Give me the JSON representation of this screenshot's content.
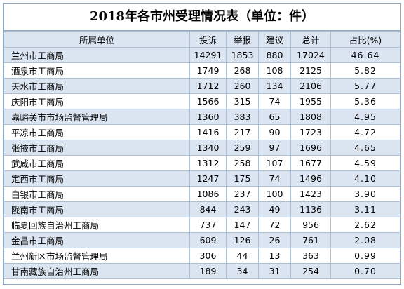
{
  "title": "2018年各市州受理情况表（单位：件）",
  "headers": {
    "unit": "所属单位",
    "complaint": "投诉",
    "report": "举报",
    "suggestion": "建议",
    "total": "总计",
    "share": "占比(%)"
  },
  "rows": [
    {
      "unit": "兰州市工商局",
      "complaint": "14291",
      "report": "1853",
      "suggestion": "880",
      "total": "17024",
      "share": "46.64"
    },
    {
      "unit": "酒泉市工商局",
      "complaint": "1749",
      "report": "268",
      "suggestion": "108",
      "total": "2125",
      "share": "5.82"
    },
    {
      "unit": "天水市工商局",
      "complaint": "1712",
      "report": "260",
      "suggestion": "134",
      "total": "2106",
      "share": "5.77"
    },
    {
      "unit": "庆阳市工商局",
      "complaint": "1566",
      "report": "315",
      "suggestion": "74",
      "total": "1955",
      "share": "5.36"
    },
    {
      "unit": "嘉峪关市市场监督管理局",
      "complaint": "1360",
      "report": "383",
      "suggestion": "65",
      "total": "1808",
      "share": "4.95"
    },
    {
      "unit": "平凉市工商局",
      "complaint": "1416",
      "report": "217",
      "suggestion": "90",
      "total": "1723",
      "share": "4.72"
    },
    {
      "unit": "张掖市工商局",
      "complaint": "1340",
      "report": "259",
      "suggestion": "97",
      "total": "1696",
      "share": "4.65"
    },
    {
      "unit": "武威市工商局",
      "complaint": "1312",
      "report": "258",
      "suggestion": "107",
      "total": "1677",
      "share": "4.59"
    },
    {
      "unit": "定西市工商局",
      "complaint": "1247",
      "report": "175",
      "suggestion": "74",
      "total": "1496",
      "share": "4.10"
    },
    {
      "unit": "白银市工商局",
      "complaint": "1086",
      "report": "237",
      "suggestion": "100",
      "total": "1423",
      "share": "3.90"
    },
    {
      "unit": "陇南市工商局",
      "complaint": "844",
      "report": "243",
      "suggestion": "49",
      "total": "1136",
      "share": "3.11"
    },
    {
      "unit": "临夏回族自治州工商局",
      "complaint": "737",
      "report": "147",
      "suggestion": "72",
      "total": "956",
      "share": "2.62"
    },
    {
      "unit": "金昌市工商局",
      "complaint": "609",
      "report": "126",
      "suggestion": "26",
      "total": "761",
      "share": "2.08"
    },
    {
      "unit": "兰州新区市场监督管理局",
      "complaint": "306",
      "report": "44",
      "suggestion": "13",
      "total": "363",
      "share": "0.99"
    },
    {
      "unit": "甘南藏族自治州工商局",
      "complaint": "189",
      "report": "34",
      "suggestion": "31",
      "total": "254",
      "share": "0.70"
    }
  ],
  "chart_data": {
    "type": "table",
    "title": "2018年各市州受理情况表（单位：件）",
    "columns": [
      "所属单位",
      "投诉",
      "举报",
      "建议",
      "总计",
      "占比(%)"
    ]
  }
}
